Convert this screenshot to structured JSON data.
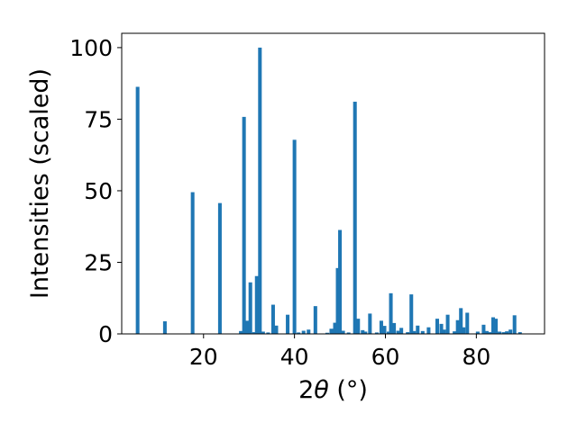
{
  "chart_data": {
    "type": "bar",
    "xlabel_prefix": "2",
    "xlabel_symbol": "θ",
    "xlabel_unit": " (°)",
    "ylabel": "Intensities (scaled)",
    "xlim": [
      2.0,
      95.0
    ],
    "ylim": [
      0,
      105
    ],
    "xticks": [
      20,
      40,
      60,
      80
    ],
    "yticks": [
      0,
      25,
      50,
      75,
      100
    ],
    "grid": false,
    "bar_color": "#1f77b4",
    "bar_width": 0.8,
    "x": [
      5.5,
      11.5,
      17.6,
      23.6,
      28.2,
      28.9,
      29.6,
      30.3,
      31.1,
      31.7,
      32.4,
      33.1,
      34.2,
      35.3,
      36.0,
      38.5,
      40.0,
      40.9,
      42.0,
      43.1,
      44.6,
      47.2,
      48.1,
      48.9,
      49.5,
      50.0,
      50.7,
      51.9,
      53.3,
      54.0,
      55.0,
      55.6,
      56.6,
      58.1,
      59.1,
      59.8,
      60.7,
      61.2,
      61.9,
      62.8,
      63.5,
      64.9,
      65.7,
      66.3,
      67.1,
      68.2,
      69.5,
      71.4,
      72.3,
      72.9,
      73.7,
      75.2,
      75.9,
      76.6,
      77.2,
      78.0,
      80.3,
      81.6,
      82.3,
      82.9,
      83.7,
      84.3,
      85.1,
      86.0,
      86.7,
      87.5,
      88.4,
      89.6
    ],
    "values": [
      86.3,
      4.4,
      49.5,
      45.7,
      1.0,
      75.8,
      4.6,
      18.0,
      0.6,
      20.2,
      100.0,
      0.8,
      0.5,
      10.2,
      2.9,
      6.7,
      67.8,
      0.5,
      1.1,
      1.5,
      9.7,
      0.4,
      1.8,
      3.9,
      23.0,
      36.3,
      1.1,
      0.5,
      81.1,
      5.3,
      1.3,
      0.8,
      7.1,
      0.5,
      4.6,
      2.8,
      0.8,
      14.2,
      3.8,
      1.1,
      2.1,
      0.6,
      13.8,
      1.0,
      2.9,
      1.0,
      2.3,
      5.3,
      3.5,
      1.5,
      6.7,
      0.9,
      4.8,
      9.0,
      2.3,
      7.4,
      0.8,
      3.2,
      1.0,
      0.6,
      5.8,
      5.3,
      0.8,
      0.6,
      0.9,
      1.5,
      6.5,
      0.6
    ]
  }
}
